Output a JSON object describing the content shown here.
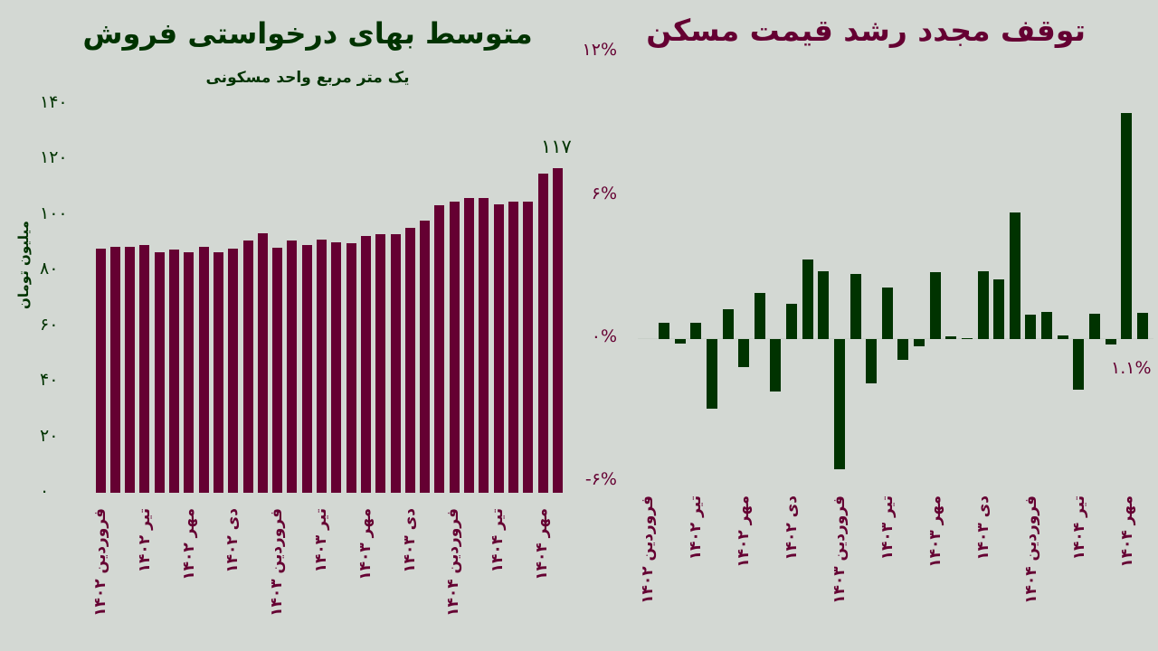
{
  "colors": {
    "background": "#d3d8d3",
    "maroon": "#650032",
    "green": "#003300"
  },
  "chart_data": [
    {
      "type": "bar",
      "title": "متوسط بهای درخواستی فروش",
      "subtitle": "یک متر مربع واحد مسکونی",
      "ylabel": "میلیون تومان",
      "xlabel": "",
      "ylim": [
        0,
        140
      ],
      "yticks": [
        "۰",
        "۲۰",
        "۴۰",
        "۶۰",
        "۸۰",
        "۱۰۰",
        "۱۲۰",
        "۱۴۰"
      ],
      "ytick_values": [
        0,
        20,
        40,
        60,
        80,
        100,
        120,
        140
      ],
      "xtick_labels": [
        "فروردین ۱۴۰۲",
        "تیر ۱۴۰۲",
        "مهر ۱۴۰۲",
        "دی ۱۴۰۲",
        "فروردین ۱۴۰۳",
        "تیر ۱۴۰۳",
        "مهر ۱۴۰۳",
        "دی ۱۴۰۳",
        "فروردین ۱۴۰۴",
        "تیر ۱۴۰۴",
        "مهر ۱۴۰۴"
      ],
      "values": [
        88,
        88.5,
        88.5,
        89.3,
        86.6,
        87.6,
        86.6,
        88.6,
        86.6,
        88,
        91,
        93.5,
        88.3,
        91,
        89.3,
        91.3,
        90.2,
        90,
        92.6,
        93,
        93,
        95.5,
        98,
        103.4,
        104.7,
        106,
        106,
        103.7,
        105,
        104.7,
        114.8,
        117
      ],
      "annotation": "۱۱۷",
      "bar_color": "#650032",
      "grid": false
    },
    {
      "type": "bar",
      "title": "توقف مجدد رشد قیمت مسکن",
      "ylim": [
        -6,
        12
      ],
      "yticks": [
        "۱۲%",
        "۶%",
        "۰%",
        "-۶%"
      ],
      "ytick_values": [
        12,
        6,
        0,
        -6
      ],
      "xtick_labels": [
        "فروردین ۱۴۰۲",
        "تیر ۱۴۰۲",
        "مهر ۱۴۰۲",
        "دی ۱۴۰۲",
        "فروردین ۱۴۰۳",
        "تیر ۱۴۰۳",
        "مهر ۱۴۰۳",
        "دی ۱۴۰۳",
        "فروردین ۱۴۰۴",
        "تیر ۱۴۰۴",
        "مهر ۱۴۰۴"
      ],
      "values": [
        0.68,
        -0.19,
        0.68,
        -2.9,
        1.26,
        -1.16,
        1.92,
        -2.21,
        1.47,
        3.32,
        2.83,
        -5.46,
        2.72,
        -1.84,
        2.15,
        -0.89,
        -0.29,
        2.79,
        0.1,
        0.04,
        2.83,
        2.49,
        5.32,
        1.02,
        1.13,
        0.15,
        -2.14,
        1.06,
        -0.21,
        9.47,
        1.1
      ],
      "annotation": "۱.۱%",
      "bar_color": "#003300",
      "grid": false
    }
  ]
}
